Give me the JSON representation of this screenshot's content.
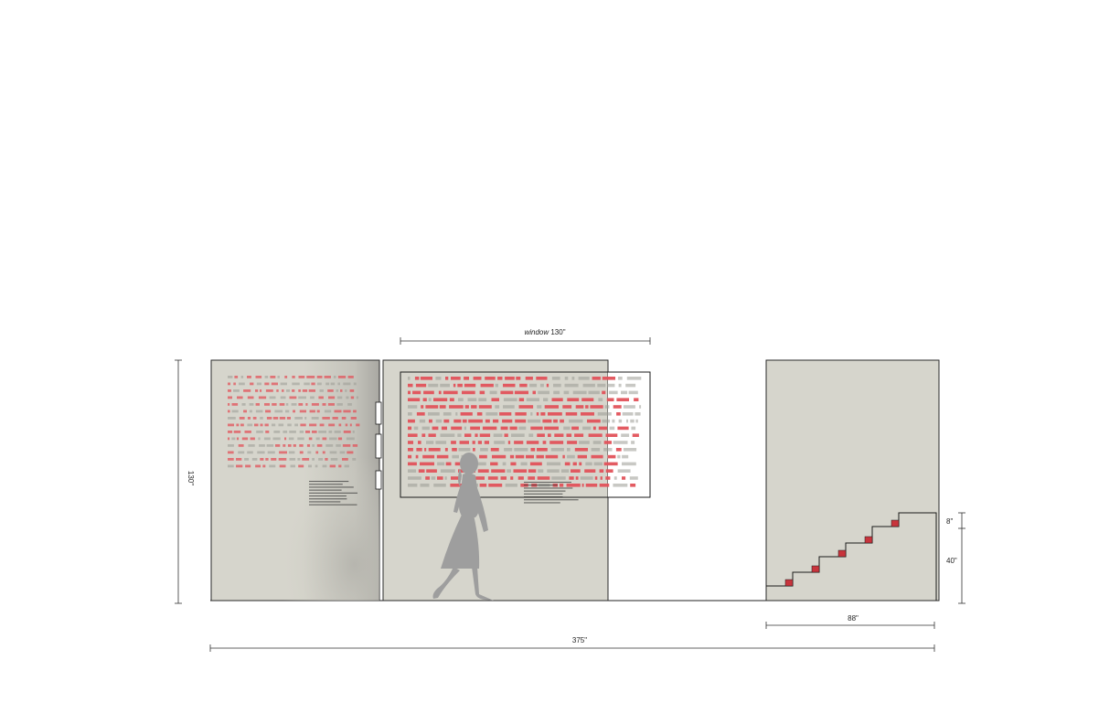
{
  "dimensions": {
    "window": {
      "label_italic": "window",
      "label_value": "130\""
    },
    "height": "130\"",
    "step": "8\"",
    "stair_rise": "40\"",
    "stair_width": "88\"",
    "total_width": "375\""
  },
  "colors": {
    "background": "#ffffff",
    "panel": "#d6d5cc",
    "panel_edge": "#2a2a2a",
    "text_red": "#e2525a",
    "text_gray": "#9a9a94",
    "silhouette": "#9e9e9e",
    "step_marker": "#c8343c",
    "dimension_line": "#333333"
  },
  "elements": {
    "person": "walking-woman-silhouette-icon",
    "stair": "staircase-outline",
    "steps": 5
  }
}
